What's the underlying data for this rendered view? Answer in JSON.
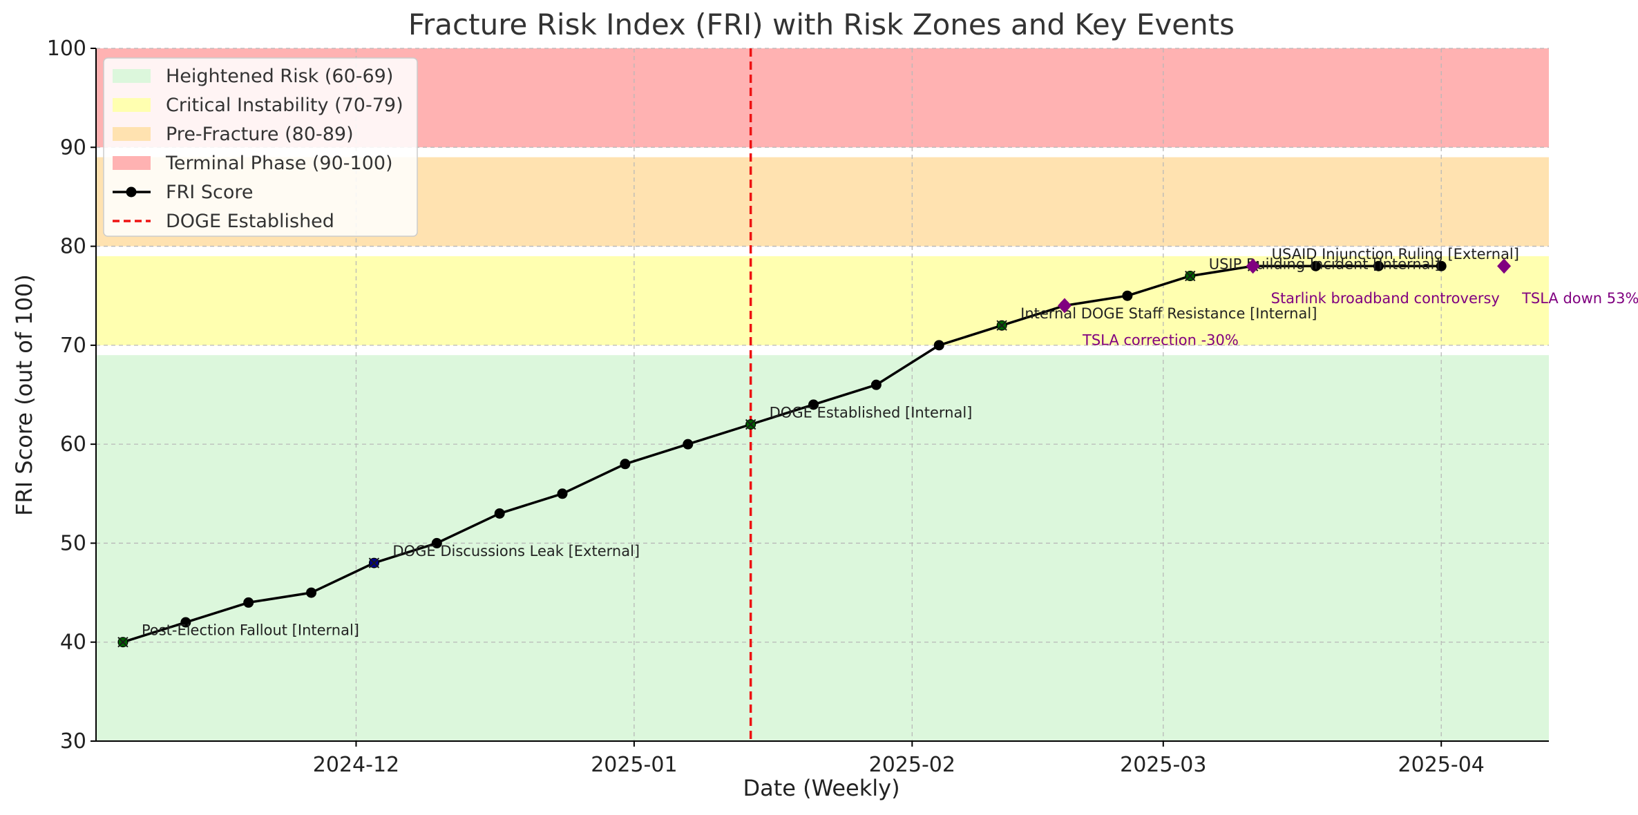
{
  "chart_data": {
    "type": "line",
    "title": "Fracture Risk Index (FRI) with Risk Zones and Key Events",
    "xlabel": "Date (Weekly)",
    "ylabel": "FRI Score (out of 100)",
    "x_range": [
      "2024-11-02",
      "2025-04-13"
    ],
    "ylim": [
      30,
      100
    ],
    "x_ticks": [
      {
        "date": "2024-12-01",
        "label": "2024-12"
      },
      {
        "date": "2025-01-01",
        "label": "2025-01"
      },
      {
        "date": "2025-02-01",
        "label": "2025-02"
      },
      {
        "date": "2025-03-01",
        "label": "2025-03"
      },
      {
        "date": "2025-04-01",
        "label": "2025-04"
      }
    ],
    "y_ticks": [
      30,
      40,
      50,
      60,
      70,
      80,
      90,
      100
    ],
    "grid": true,
    "legend_position": "top-left",
    "zones": [
      {
        "name": "Heightened Risk (60-69)",
        "range": [
          30,
          69
        ],
        "color": "#dcf7dc"
      },
      {
        "name": "Critical Instability (70-79)",
        "range": [
          70,
          79
        ],
        "color": "#ffffb0"
      },
      {
        "name": "Pre-Fracture (80-89)",
        "range": [
          80,
          89
        ],
        "color": "#ffe2b0"
      },
      {
        "name": "Terminal Phase (90-100)",
        "range": [
          90,
          100
        ],
        "color": "#ffb2b2"
      }
    ],
    "series": [
      {
        "name": "FRI Score",
        "color": "#000000",
        "points": [
          {
            "date": "2024-11-05",
            "value": 40
          },
          {
            "date": "2024-11-12",
            "value": 42
          },
          {
            "date": "2024-11-19",
            "value": 44
          },
          {
            "date": "2024-11-26",
            "value": 45
          },
          {
            "date": "2024-12-03",
            "value": 48
          },
          {
            "date": "2024-12-10",
            "value": 50
          },
          {
            "date": "2024-12-17",
            "value": 53
          },
          {
            "date": "2024-12-24",
            "value": 55
          },
          {
            "date": "2024-12-31",
            "value": 58
          },
          {
            "date": "2025-01-07",
            "value": 60
          },
          {
            "date": "2025-01-14",
            "value": 62
          },
          {
            "date": "2025-01-21",
            "value": 64
          },
          {
            "date": "2025-01-28",
            "value": 66
          },
          {
            "date": "2025-02-04",
            "value": 70
          },
          {
            "date": "2025-02-11",
            "value": 72
          },
          {
            "date": "2025-02-18",
            "value": 74
          },
          {
            "date": "2025-02-25",
            "value": 75
          },
          {
            "date": "2025-03-04",
            "value": 77
          },
          {
            "date": "2025-03-11",
            "value": 78
          },
          {
            "date": "2025-03-18",
            "value": 78
          },
          {
            "date": "2025-03-25",
            "value": 78
          },
          {
            "date": "2025-04-01",
            "value": 78
          }
        ]
      }
    ],
    "vertical_line": {
      "name": "DOGE Established",
      "date": "2025-01-14",
      "color": "#ee1111"
    },
    "events": [
      {
        "date": "2024-11-05",
        "value": 40,
        "label": "Post-Election Fallout [Internal]",
        "color": "#006400"
      },
      {
        "date": "2024-12-03",
        "value": 48,
        "label": "DOGE Discussions Leak [External]",
        "color": "#00008b"
      },
      {
        "date": "2025-01-14",
        "value": 62,
        "label": "DOGE Established [Internal]",
        "color": "#006400"
      },
      {
        "date": "2025-02-11",
        "value": 72,
        "label": "Internal DOGE Staff Resistance [Internal]",
        "color": "#006400"
      },
      {
        "date": "2025-03-04",
        "value": 77,
        "label": "USIP Building Incident [Internal]",
        "color": "#006400"
      },
      {
        "date": "2025-03-11",
        "value": 78,
        "label": "USAID Injunction Ruling [External]",
        "color": "#00008b"
      }
    ],
    "market_events": [
      {
        "date": "2025-02-18",
        "value": 74,
        "label": "TSLA correction -30%",
        "color": "#800080"
      },
      {
        "date": "2025-03-11",
        "value": 78,
        "label": "Starlink broadband controversy",
        "color": "#800080"
      },
      {
        "date": "2025-04-08",
        "value": 78,
        "label": "TSLA down 53%",
        "color": "#800080"
      }
    ]
  }
}
